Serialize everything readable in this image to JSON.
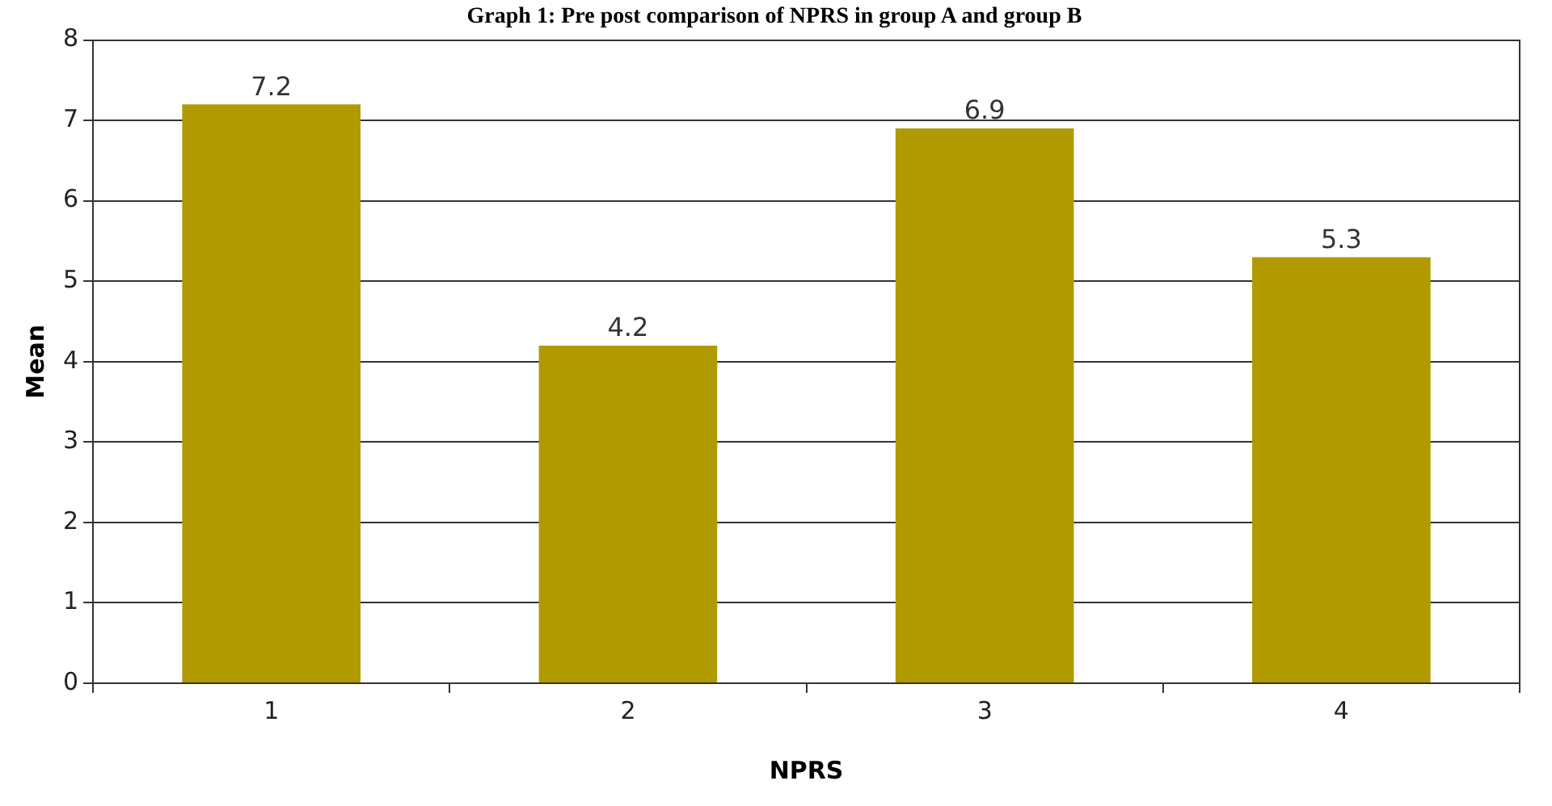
{
  "chart_data": {
    "type": "bar",
    "title": "Graph 1: Pre post comparison of NPRS in group A and group B",
    "xlabel": "NPRS",
    "ylabel": "Mean",
    "categories": [
      "1",
      "2",
      "3",
      "4"
    ],
    "values": [
      7.2,
      4.2,
      6.9,
      5.3
    ],
    "color": "#b09a00",
    "ylim": [
      0,
      8
    ],
    "yticks": [
      0,
      1,
      2,
      3,
      4,
      5,
      6,
      7,
      8
    ],
    "grid": "y",
    "data_labels": true,
    "legend": false
  }
}
